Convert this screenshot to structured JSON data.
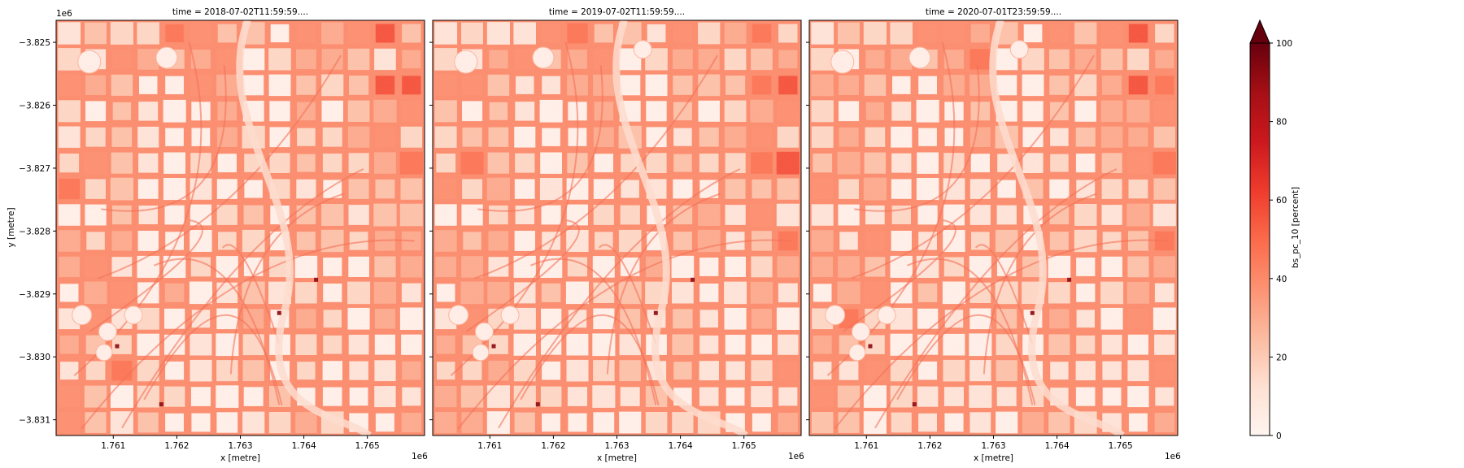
{
  "chart_data": {
    "type": "heatmap",
    "panels": [
      {
        "title": "time = 2018-07-02T11:59:59...."
      },
      {
        "title": "time = 2019-07-02T11:59:59...."
      },
      {
        "title": "time = 2020-07-01T23:59:59...."
      }
    ],
    "xlabel": "x [metre]",
    "ylabel": "y [metre]",
    "x_offset_label": "1e6",
    "y_offset_label": "1e6",
    "x_range": [
      1.7601,
      1.7659
    ],
    "y_range": [
      -3.83125,
      -3.82465
    ],
    "x_ticks": [
      1.761,
      1.762,
      1.763,
      1.764,
      1.765
    ],
    "x_tick_labels": [
      "1.761",
      "1.762",
      "1.763",
      "1.764",
      "1.765"
    ],
    "y_ticks": [
      -3.825,
      -3.826,
      -3.827,
      -3.828,
      -3.829,
      -3.83,
      -3.831
    ],
    "y_tick_labels": [
      "−3.825",
      "−3.826",
      "−3.827",
      "−3.828",
      "−3.829",
      "−3.830",
      "−3.831"
    ],
    "colorbar": {
      "label": "bs_pc_10 [percent]",
      "min": 0,
      "max": 100,
      "ticks": [
        0,
        20,
        40,
        60,
        80,
        100
      ],
      "tick_labels": [
        "0",
        "20",
        "40",
        "60",
        "80",
        "100"
      ],
      "extend": "max",
      "colormap": "Reds",
      "stops": [
        "#fff5f0",
        "#fee0d2",
        "#fcbba1",
        "#fc9272",
        "#fb6a4a",
        "#ef3b2c",
        "#cb181d",
        "#a50f15",
        "#67000d"
      ]
    }
  }
}
